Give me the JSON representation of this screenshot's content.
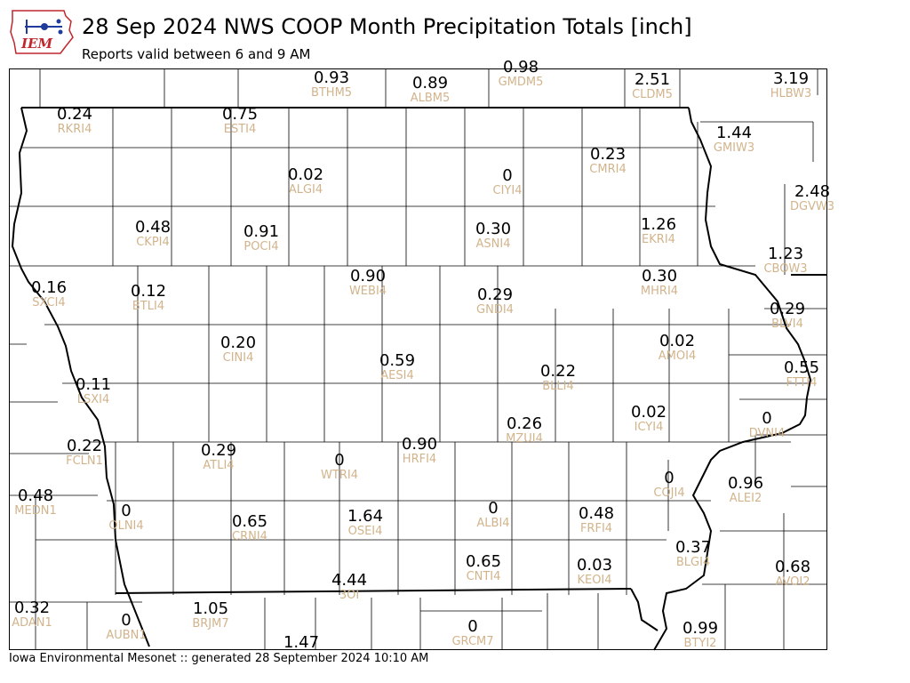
{
  "header": {
    "logo_text": "IEM",
    "title": "28 Sep 2024 NWS COOP Month Precipitation Totals [inch]",
    "subtitle": "Reports valid between 6 and 9 AM"
  },
  "footer": {
    "text": "Iowa Environmental Mesonet :: generated 28 September 2024 10:10 AM"
  },
  "colors": {
    "value_text": "#000000",
    "station_text": "#d2b48c",
    "county_lines": "#000000",
    "state_border": "#000000",
    "logo_red": "#c0272d",
    "logo_blue": "#1f3c9c"
  },
  "stations": [
    {
      "id": "BTHM5",
      "value": "0.93"
    },
    {
      "id": "ALBM5",
      "value": "0.89"
    },
    {
      "id": "GMDM5",
      "value": "0.98"
    },
    {
      "id": "CLDM5",
      "value": "2.51"
    },
    {
      "id": "HLBW3",
      "value": "3.19"
    },
    {
      "id": "RKRI4",
      "value": "0.24"
    },
    {
      "id": "ESTI4",
      "value": "0.75"
    },
    {
      "id": "GMIW3",
      "value": "1.44"
    },
    {
      "id": "ALGI4",
      "value": "0.02"
    },
    {
      "id": "CIYI4",
      "value": "0"
    },
    {
      "id": "CMRI4",
      "value": "0.23"
    },
    {
      "id": "DGVW3",
      "value": "2.48"
    },
    {
      "id": "CKPI4",
      "value": "0.48"
    },
    {
      "id": "POCI4",
      "value": "0.91"
    },
    {
      "id": "ASNI4",
      "value": "0.30"
    },
    {
      "id": "EKRI4",
      "value": "1.26"
    },
    {
      "id": "CBOW3",
      "value": "1.23"
    },
    {
      "id": "SXCI4",
      "value": "0.16"
    },
    {
      "id": "BTLI4",
      "value": "0.12"
    },
    {
      "id": "WEBI4",
      "value": "0.90"
    },
    {
      "id": "GNDI4",
      "value": "0.29"
    },
    {
      "id": "MHRI4",
      "value": "0.30"
    },
    {
      "id": "BLVI4",
      "value": "0.29"
    },
    {
      "id": "CINI4",
      "value": "0.20"
    },
    {
      "id": "AESI4",
      "value": "0.59"
    },
    {
      "id": "AMOI4",
      "value": "0.02"
    },
    {
      "id": "BLLI4",
      "value": "0.22"
    },
    {
      "id": "FTTI4",
      "value": "0.55"
    },
    {
      "id": "LSXI4",
      "value": "0.11"
    },
    {
      "id": "ICYI4",
      "value": "0.02"
    },
    {
      "id": "DVNI4",
      "value": "0"
    },
    {
      "id": "FCLN1",
      "value": "0.22"
    },
    {
      "id": "ATLI4",
      "value": "0.29"
    },
    {
      "id": "HRFI4",
      "value": "0.90"
    },
    {
      "id": "MZUI4",
      "value": "0.26"
    },
    {
      "id": "WTRI4",
      "value": "0"
    },
    {
      "id": "COJI4",
      "value": "0"
    },
    {
      "id": "ALEI2",
      "value": "0.96"
    },
    {
      "id": "MEDN1",
      "value": "0.48"
    },
    {
      "id": "OLNI4",
      "value": "0"
    },
    {
      "id": "CRNI4",
      "value": "0.65"
    },
    {
      "id": "OSEI4",
      "value": "1.64"
    },
    {
      "id": "ALBI4",
      "value": "0"
    },
    {
      "id": "FRFI4",
      "value": "0.48"
    },
    {
      "id": "BLGI4",
      "value": "0.37"
    },
    {
      "id": "CNTI4",
      "value": "0.65"
    },
    {
      "id": "KEOI4",
      "value": "0.03"
    },
    {
      "id": "AVOI2",
      "value": "0.68"
    },
    {
      "id": "3OI",
      "value": "4.44"
    },
    {
      "id": "ADAN1",
      "value": "0.32"
    },
    {
      "id": "AUBN1",
      "value": "0"
    },
    {
      "id": "BRJM7",
      "value": "1.05"
    },
    {
      "id": "GRCM7",
      "value": "0"
    },
    {
      "id": "BTYI2",
      "value": "0.99"
    },
    {
      "id": "",
      "value": "1.47"
    }
  ]
}
